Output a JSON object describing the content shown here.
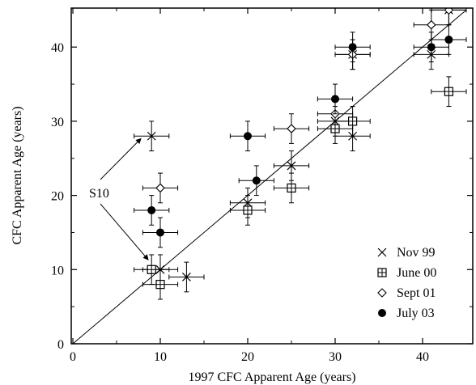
{
  "chart_data": {
    "type": "scatter",
    "xlabel": "1997 CFC Apparent Age (years)",
    "ylabel": "CFC Apparent Age (years)",
    "xlim": [
      0,
      45
    ],
    "ylim": [
      0,
      45
    ],
    "x_ticks": [
      0,
      10,
      20,
      30,
      40
    ],
    "y_ticks": [
      0,
      10,
      20,
      30,
      40
    ],
    "reference_line": "1:1",
    "grid": false,
    "legend_position": "bottom-right",
    "annotation": {
      "text": "S10"
    },
    "series": [
      {
        "name": "Nov 99",
        "marker": "x",
        "points": [
          {
            "x": 9,
            "y": 28,
            "xerr": 2,
            "yerr": 2
          },
          {
            "x": 10,
            "y": 10,
            "xerr": 2,
            "yerr": 2
          },
          {
            "x": 13,
            "y": 9,
            "xerr": 2,
            "yerr": 2
          },
          {
            "x": 20,
            "y": 19,
            "xerr": 2,
            "yerr": 2
          },
          {
            "x": 25,
            "y": 24,
            "xerr": 2,
            "yerr": 2
          },
          {
            "x": 30,
            "y": 30,
            "xerr": 2,
            "yerr": 2
          },
          {
            "x": 32,
            "y": 28,
            "xerr": 2,
            "yerr": 2
          },
          {
            "x": 32,
            "y": 39,
            "xerr": 2,
            "yerr": 2
          },
          {
            "x": 41,
            "y": 39,
            "xerr": 2,
            "yerr": 2
          },
          {
            "x": 43,
            "y": 45,
            "xerr": 2,
            "yerr": 2
          }
        ]
      },
      {
        "name": "June 00",
        "marker": "square-plus",
        "points": [
          {
            "x": 9,
            "y": 10,
            "xerr": 2,
            "yerr": 2
          },
          {
            "x": 10,
            "y": 8,
            "xerr": 2,
            "yerr": 2
          },
          {
            "x": 20,
            "y": 18,
            "xerr": 2,
            "yerr": 2
          },
          {
            "x": 25,
            "y": 21,
            "xerr": 2,
            "yerr": 2
          },
          {
            "x": 30,
            "y": 29,
            "xerr": 2,
            "yerr": 2
          },
          {
            "x": 32,
            "y": 30,
            "xerr": 2,
            "yerr": 2
          },
          {
            "x": 43,
            "y": 34,
            "xerr": 2,
            "yerr": 2
          }
        ]
      },
      {
        "name": "Sept 01",
        "marker": "diamond",
        "points": [
          {
            "x": 10,
            "y": 21,
            "xerr": 2,
            "yerr": 2
          },
          {
            "x": 25,
            "y": 29,
            "xerr": 2,
            "yerr": 2
          },
          {
            "x": 30,
            "y": 31,
            "xerr": 2,
            "yerr": 2
          },
          {
            "x": 32,
            "y": 39,
            "xerr": 2,
            "yerr": 2
          },
          {
            "x": 41,
            "y": 43,
            "xerr": 2,
            "yerr": 2
          },
          {
            "x": 43,
            "y": 45,
            "xerr": 2,
            "yerr": 2
          }
        ]
      },
      {
        "name": "July 03",
        "marker": "filled-circle",
        "points": [
          {
            "x": 9,
            "y": 18,
            "xerr": 2,
            "yerr": 2
          },
          {
            "x": 10,
            "y": 15,
            "xerr": 2,
            "yerr": 2
          },
          {
            "x": 20,
            "y": 28,
            "xerr": 2,
            "yerr": 2
          },
          {
            "x": 21,
            "y": 22,
            "xerr": 2,
            "yerr": 2
          },
          {
            "x": 30,
            "y": 33,
            "xerr": 2,
            "yerr": 2
          },
          {
            "x": 32,
            "y": 40,
            "xerr": 2,
            "yerr": 2
          },
          {
            "x": 41,
            "y": 40,
            "xerr": 2,
            "yerr": 2
          },
          {
            "x": 43,
            "y": 41,
            "xerr": 2,
            "yerr": 2
          }
        ]
      }
    ]
  }
}
